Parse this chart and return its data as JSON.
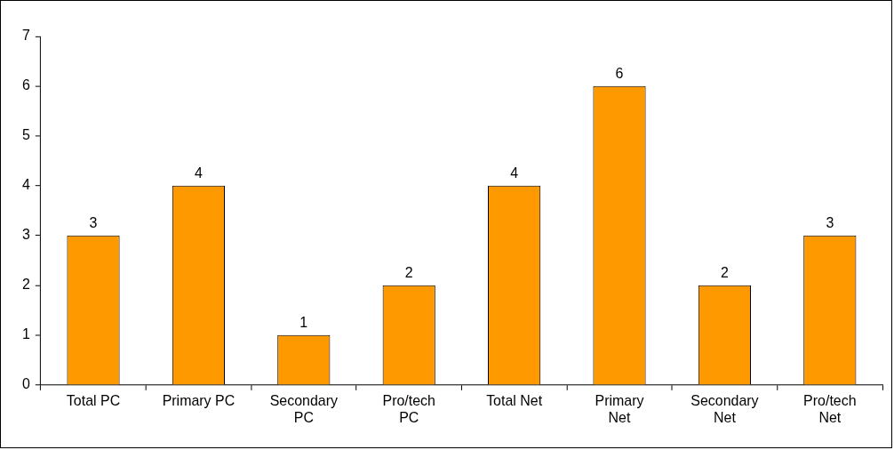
{
  "chart_data": {
    "type": "bar",
    "categories": [
      "Total PC",
      "Primary PC",
      "Secondary PC",
      "Pro/tech PC",
      "Total Net",
      "Primary Net",
      "Secondary Net",
      "Pro/tech Net"
    ],
    "values": [
      3,
      4,
      1,
      2,
      4,
      6,
      2,
      3
    ],
    "color": "#ff9900",
    "ylim": [
      0,
      7
    ],
    "yticks": [
      0,
      1,
      2,
      3,
      4,
      5,
      6,
      7
    ],
    "grid": false,
    "legend": false,
    "data_labels": true
  }
}
